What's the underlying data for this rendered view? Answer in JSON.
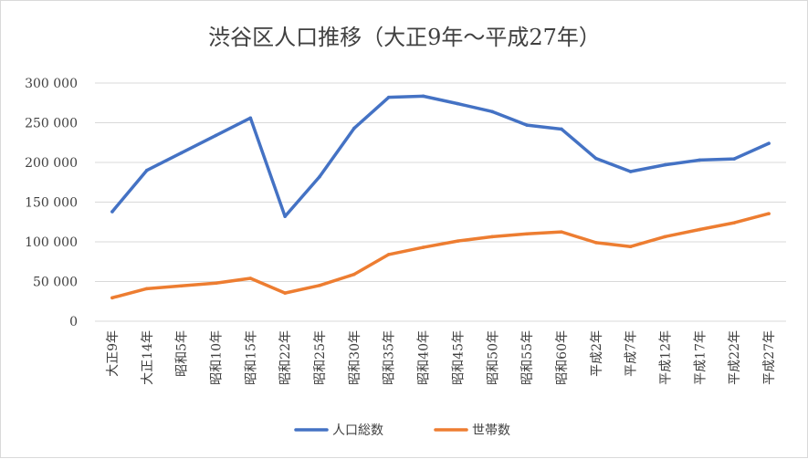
{
  "chart_data": {
    "type": "line",
    "title": "渋谷区人口推移（大正9年～平成27年）",
    "xlabel": "",
    "ylabel": "",
    "ylim": [
      0,
      300000
    ],
    "yticks": [
      0,
      50000,
      100000,
      150000,
      200000,
      250000,
      300000
    ],
    "ytick_labels": [
      "0",
      "50 000",
      "100 000",
      "150 000",
      "200 000",
      "250 000",
      "300 000"
    ],
    "categories": [
      "大正9年",
      "大正14年",
      "昭和5年",
      "昭和10年",
      "昭和15年",
      "昭和22年",
      "昭和25年",
      "昭和30年",
      "昭和35年",
      "昭和40年",
      "昭和45年",
      "昭和50年",
      "昭和55年",
      "昭和60年",
      "平成2年",
      "平成7年",
      "平成12年",
      "平成17年",
      "平成22年",
      "平成27年"
    ],
    "series": [
      {
        "name": "人口総数",
        "color": "#4472c4",
        "values": [
          138000,
          190000,
          212000,
          234000,
          256000,
          132000,
          182000,
          243000,
          282000,
          283500,
          274000,
          264000,
          247000,
          242000,
          205000,
          188500,
          197000,
          203000,
          204500,
          224000
        ]
      },
      {
        "name": "世帯数",
        "color": "#ed7d31",
        "values": [
          29500,
          41000,
          44500,
          48000,
          54000,
          35500,
          45000,
          59000,
          84000,
          93000,
          101000,
          106500,
          110000,
          112500,
          99000,
          94000,
          106500,
          115500,
          124000,
          135500
        ]
      }
    ],
    "grid": true,
    "legend_position": "bottom"
  }
}
